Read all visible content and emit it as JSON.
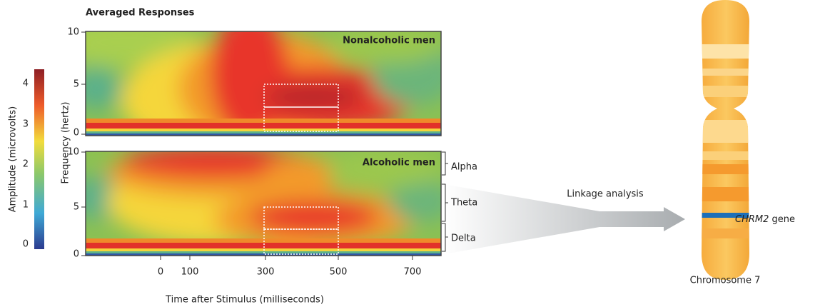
{
  "title": "Averaged Responses",
  "colorbar": {
    "label": "Amplitude (microvolts)",
    "ticks": [
      4,
      3,
      2,
      1,
      0
    ]
  },
  "y_axis_label": "Frequency (hertz)",
  "panels": [
    {
      "label": "Nonalcoholic men",
      "yticks": [
        10,
        5,
        0
      ]
    },
    {
      "label": "Alcoholic men",
      "yticks": [
        10,
        5,
        0
      ]
    }
  ],
  "x_axis": {
    "label": "Time after Stimulus (milliseconds)",
    "ticks": [
      0,
      100,
      300,
      500,
      700
    ]
  },
  "bands": [
    "Alpha",
    "Theta",
    "Delta"
  ],
  "arrow_label": "Linkage analysis",
  "gene": {
    "name": "CHRM2",
    "suffix": "gene"
  },
  "chromosome": "Chromosome 7"
}
